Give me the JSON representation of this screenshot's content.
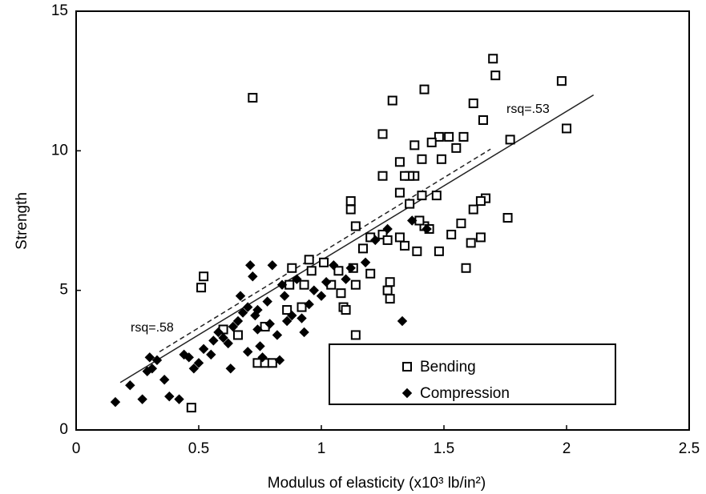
{
  "chart_data": {
    "type": "scatter",
    "xlabel": "Modulus of elasticity (x10³ lb/in²)",
    "ylabel": "Strength",
    "xlim": [
      0,
      2.5
    ],
    "xticks": [
      0,
      0.5,
      1,
      1.5,
      2,
      2.5
    ],
    "ylim": [
      0,
      15
    ],
    "yticks": [
      0,
      5,
      10,
      15
    ],
    "legend": "lower right",
    "series": [
      {
        "name": "Bending",
        "color": "#000000",
        "marker": "square",
        "x": [
          0.72,
          1.7,
          1.71,
          1.98,
          2.0,
          1.77,
          1.42,
          1.62,
          1.29,
          1.66,
          1.25,
          1.48,
          1.52,
          1.58,
          1.45,
          1.55,
          1.38,
          1.49,
          1.41,
          1.32,
          1.25,
          1.38,
          1.36,
          1.34,
          1.47,
          1.41,
          1.32,
          1.36,
          1.12,
          1.12,
          1.67,
          1.65,
          1.62,
          1.57,
          1.76,
          1.42,
          1.44,
          1.4,
          1.25,
          1.32,
          1.2,
          1.17,
          1.14,
          1.27,
          1.53,
          1.61,
          1.65,
          1.48,
          1.39,
          1.34,
          1.59,
          1.28,
          1.27,
          1.28,
          1.13,
          1.07,
          1.14,
          0.95,
          1.01,
          0.88,
          0.87,
          0.93,
          1.04,
          1.08,
          1.09,
          1.1,
          0.86,
          0.77,
          1.14,
          0.52,
          0.51,
          0.6,
          0.66,
          0.74,
          0.77,
          0.8,
          0.47,
          0.92,
          1.2,
          0.96
        ],
        "values": [
          11.9,
          13.3,
          12.7,
          12.5,
          10.8,
          10.4,
          12.2,
          11.7,
          11.8,
          11.1,
          10.6,
          10.5,
          10.5,
          10.5,
          10.3,
          10.1,
          10.2,
          9.7,
          9.7,
          9.6,
          9.1,
          9.1,
          9.1,
          9.1,
          8.4,
          8.4,
          8.5,
          8.1,
          8.2,
          7.9,
          8.3,
          8.2,
          7.9,
          7.4,
          7.6,
          7.3,
          7.2,
          7.5,
          7.0,
          6.9,
          6.9,
          6.5,
          7.3,
          6.8,
          7.0,
          6.7,
          6.9,
          6.4,
          6.4,
          6.6,
          5.8,
          5.3,
          5.0,
          4.7,
          5.8,
          5.7,
          5.2,
          6.1,
          6.0,
          5.8,
          5.2,
          5.2,
          5.2,
          4.9,
          4.4,
          4.3,
          4.3,
          3.7,
          3.4,
          5.5,
          5.1,
          3.6,
          3.4,
          2.4,
          2.4,
          2.4,
          0.8,
          4.4,
          5.6,
          5.7
        ]
      },
      {
        "name": "Compression",
        "color": "#000000",
        "marker": "diamond",
        "x": [
          0.16,
          0.22,
          0.27,
          0.29,
          0.31,
          0.33,
          0.36,
          0.38,
          0.42,
          0.44,
          0.46,
          0.48,
          0.5,
          0.52,
          0.55,
          0.56,
          0.58,
          0.6,
          0.63,
          0.64,
          0.66,
          0.68,
          0.7,
          0.71,
          0.72,
          0.73,
          0.74,
          0.75,
          0.76,
          0.78,
          0.8,
          0.82,
          0.84,
          0.85,
          0.86,
          0.88,
          0.9,
          0.92,
          0.93,
          0.95,
          0.97,
          1.0,
          1.02,
          1.05,
          1.1,
          1.12,
          1.18,
          1.22,
          1.27,
          1.33,
          1.37,
          1.43,
          0.62,
          0.67,
          0.74,
          0.79,
          0.83,
          0.7,
          0.3
        ],
        "values": [
          1.0,
          1.6,
          1.1,
          2.1,
          2.2,
          2.5,
          1.8,
          1.2,
          1.1,
          2.7,
          2.6,
          2.2,
          2.4,
          2.9,
          2.7,
          3.2,
          3.5,
          3.3,
          2.2,
          3.7,
          3.9,
          4.2,
          4.4,
          5.9,
          5.5,
          4.1,
          3.6,
          3.0,
          2.6,
          4.6,
          5.9,
          3.4,
          5.2,
          4.8,
          3.9,
          4.1,
          5.4,
          4.0,
          3.5,
          4.5,
          5.0,
          4.8,
          5.3,
          5.9,
          5.4,
          5.8,
          6.0,
          6.8,
          7.2,
          3.9,
          7.5,
          7.2,
          3.1,
          4.8,
          4.3,
          3.8,
          2.5,
          2.8,
          2.6
        ]
      }
    ],
    "trend_lines": [
      {
        "label": "rsq=.53",
        "style": "solid",
        "x": [
          0.18,
          2.11
        ],
        "y": [
          1.7,
          12.0
        ]
      },
      {
        "label": "rsq=.58",
        "style": "dashed",
        "x": [
          0.34,
          1.69
        ],
        "y": [
          2.8,
          10.06
        ]
      }
    ]
  }
}
